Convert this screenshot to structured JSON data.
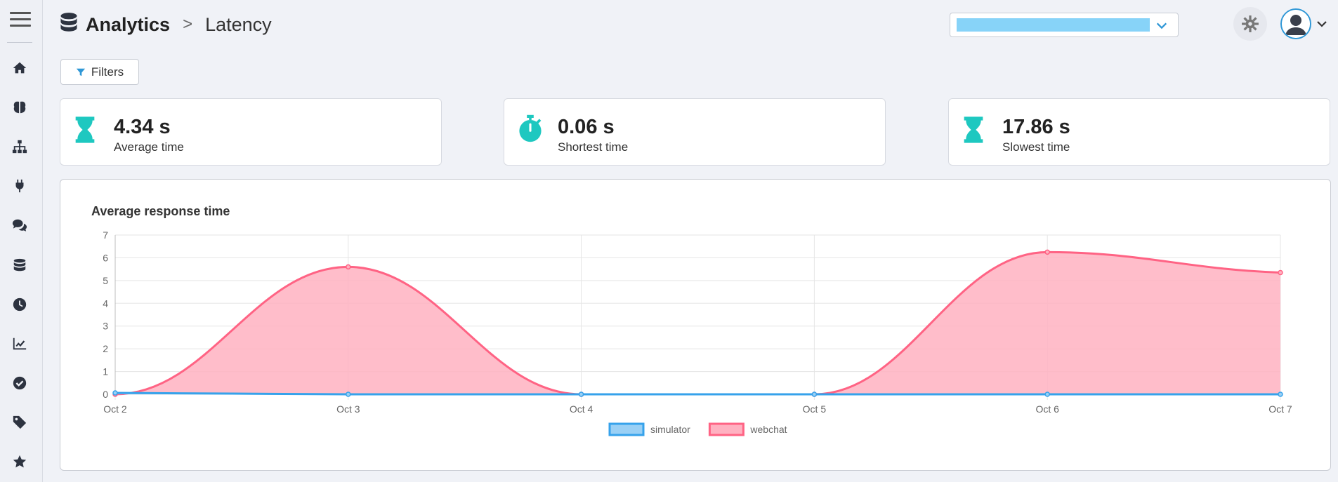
{
  "header": {
    "app_title": "Analytics",
    "separator": ">",
    "page_title": "Latency"
  },
  "sidebar": {
    "items": [
      {
        "icon": "home-icon"
      },
      {
        "icon": "brain-icon"
      },
      {
        "icon": "sitemap-icon"
      },
      {
        "icon": "plug-icon"
      },
      {
        "icon": "comments-icon"
      },
      {
        "icon": "database-icon"
      },
      {
        "icon": "clock-icon"
      },
      {
        "icon": "chart-line-icon"
      },
      {
        "icon": "check-circle-icon"
      },
      {
        "icon": "tag-icon"
      },
      {
        "icon": "star-icon"
      }
    ]
  },
  "filters": {
    "label": "Filters"
  },
  "stats": [
    {
      "value": "4.34 s",
      "label": "Average time",
      "icon": "hourglass-icon"
    },
    {
      "value": "0.06 s",
      "label": "Shortest time",
      "icon": "stopwatch-icon"
    },
    {
      "value": "17.86 s",
      "label": "Slowest time",
      "icon": "hourglass-icon"
    }
  ],
  "colors": {
    "accent": "#1ec8c0",
    "primary": "#2f97d6",
    "webchat": "#ff6384",
    "simulator": "#36a2eb"
  },
  "chart_data": {
    "type": "area",
    "title": "Average response time",
    "x": [
      "Oct 2",
      "Oct 3",
      "Oct 4",
      "Oct 5",
      "Oct 6",
      "Oct 7"
    ],
    "ylim": [
      0,
      7
    ],
    "yticks": [
      0,
      1,
      2,
      3,
      4,
      5,
      6,
      7
    ],
    "grid": true,
    "legend_position": "bottom",
    "series": [
      {
        "name": "simulator",
        "values": [
          0.06,
          0,
          0,
          0,
          0,
          0
        ],
        "color": "#36a2eb",
        "fill": "#9ad0f5"
      },
      {
        "name": "webchat",
        "values": [
          0,
          5.6,
          0,
          0,
          6.25,
          5.35
        ],
        "color": "#ff6384",
        "fill": "#ffb1c1"
      }
    ]
  }
}
